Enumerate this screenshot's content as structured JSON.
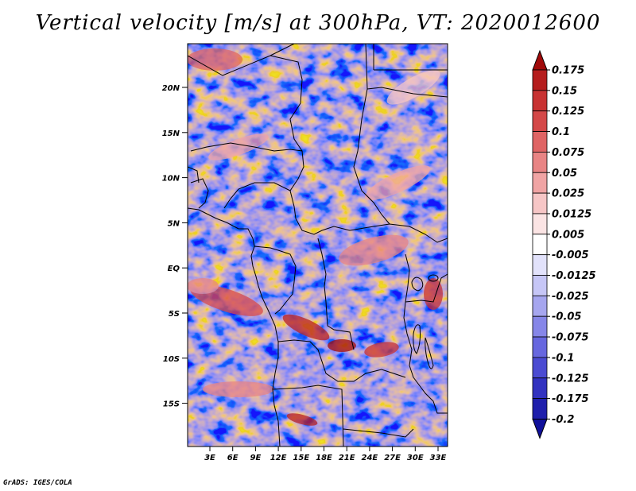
{
  "title": "Vertical velocity [m/s] at 300hPa, VT: 2020012600",
  "credit": "GrADS: IGES/COLA",
  "lat_labels": [
    "20N",
    "15N",
    "10N",
    "5N",
    "EQ",
    "5S",
    "10S",
    "15S"
  ],
  "lon_labels": [
    "3E",
    "6E",
    "9E",
    "12E",
    "15E",
    "18E",
    "21E",
    "24E",
    "27E",
    "30E",
    "33E"
  ],
  "colorbar": {
    "labels": [
      "0.175",
      "0.15",
      "0.125",
      "0.1",
      "0.075",
      "0.05",
      "0.025",
      "0.0125",
      "0.005",
      "-0.005",
      "-0.0125",
      "-0.025",
      "-0.05",
      "-0.075",
      "-0.1",
      "-0.125",
      "-0.175",
      "-0.2"
    ],
    "colors": [
      "#a00a0a",
      "#b51d1d",
      "#c83232",
      "#d44848",
      "#df6464",
      "#e88484",
      "#f0a4a4",
      "#f6c6c6",
      "#fbe4e4",
      "#ffffff",
      "#e2e2fb",
      "#c6c6f6",
      "#a6a6ef",
      "#8686e8",
      "#6767df",
      "#4b4bd2",
      "#3232c0",
      "#1f1fac",
      "#10109a"
    ]
  }
}
